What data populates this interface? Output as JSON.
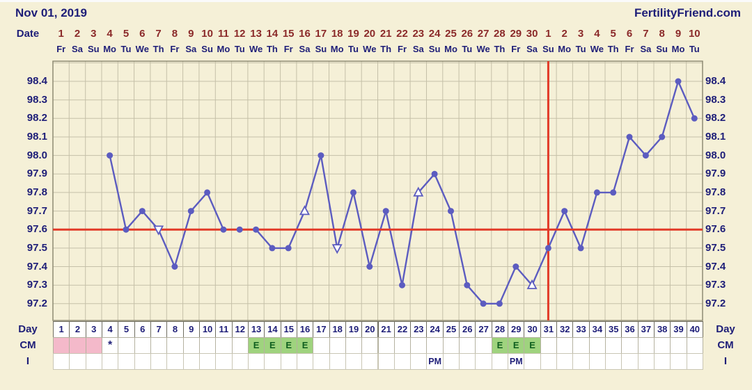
{
  "header": {
    "title": "Nov 01, 2019",
    "site": "FertilityFriend.com"
  },
  "axis": {
    "date_label": "Date",
    "dates": [
      1,
      2,
      3,
      4,
      5,
      6,
      7,
      8,
      9,
      10,
      11,
      12,
      13,
      14,
      15,
      16,
      17,
      18,
      19,
      20,
      21,
      22,
      23,
      24,
      25,
      26,
      27,
      28,
      29,
      30,
      1,
      2,
      3,
      4,
      5,
      6,
      7,
      8,
      9,
      10
    ],
    "weekdays": [
      "Fr",
      "Sa",
      "Su",
      "Mo",
      "Tu",
      "We",
      "Th",
      "Fr",
      "Sa",
      "Su",
      "Mo",
      "Tu",
      "We",
      "Th",
      "Fr",
      "Sa",
      "Su",
      "Mo",
      "Tu",
      "We",
      "Th",
      "Fr",
      "Sa",
      "Su",
      "Mo",
      "Tu",
      "We",
      "Th",
      "Fr",
      "Sa",
      "Su",
      "Mo",
      "Tu",
      "We",
      "Th",
      "Fr",
      "Sa",
      "Su",
      "Mo",
      "Tu"
    ],
    "temp_labels": [
      "98.4",
      "98.3",
      "98.2",
      "98.1",
      "98.0",
      "97.9",
      "97.8",
      "97.7",
      "97.6",
      "97.5",
      "97.4",
      "97.3",
      "97.2"
    ]
  },
  "rows": {
    "day_label": "Day",
    "cm_label": "CM",
    "i_label": "I",
    "day_numbers": [
      1,
      2,
      3,
      4,
      5,
      6,
      7,
      8,
      9,
      10,
      11,
      12,
      13,
      14,
      15,
      16,
      17,
      18,
      19,
      20,
      21,
      22,
      23,
      24,
      25,
      26,
      27,
      28,
      29,
      30,
      31,
      32,
      33,
      34,
      35,
      36,
      37,
      38,
      39,
      40
    ],
    "cm_pink_days": [
      1,
      2,
      3
    ],
    "cm_star_day": 4,
    "star_symbol": "*",
    "cm_egg_days": [
      13,
      14,
      15,
      16,
      28,
      29,
      30
    ],
    "egg_symbol": "E",
    "pm_days": [
      24,
      29
    ],
    "pm_symbol": "PM"
  },
  "chart_data": {
    "type": "line",
    "x": [
      1,
      2,
      3,
      4,
      5,
      6,
      7,
      8,
      9,
      10,
      11,
      12,
      13,
      14,
      15,
      16,
      17,
      18,
      19,
      20,
      21,
      22,
      23,
      24,
      25,
      26,
      27,
      28,
      29,
      30,
      31,
      32,
      33,
      34,
      35,
      36,
      37,
      38,
      39,
      40
    ],
    "temps": [
      null,
      null,
      null,
      98.0,
      97.6,
      97.7,
      97.6,
      97.4,
      97.7,
      97.8,
      97.6,
      97.6,
      97.6,
      97.5,
      97.5,
      97.7,
      98.0,
      97.5,
      97.8,
      97.4,
      97.7,
      97.3,
      97.8,
      97.9,
      97.7,
      97.3,
      97.2,
      97.2,
      97.4,
      97.3,
      97.5,
      97.7,
      97.5,
      97.8,
      97.8,
      98.1,
      98.0,
      98.1,
      98.4,
      98.2
    ],
    "y_ticks": [
      98.4,
      98.3,
      98.2,
      98.1,
      98.0,
      97.9,
      97.8,
      97.7,
      97.6,
      97.5,
      97.4,
      97.3,
      97.2
    ],
    "y_range": [
      97.1,
      98.5
    ],
    "coverline": 97.6,
    "ovulation_line_day": 31,
    "open_triangle_up_days": [
      16,
      23,
      30
    ],
    "open_triangle_down_days": [
      7,
      18
    ],
    "grid": true,
    "line_color": "#5c5cc0",
    "coverline_color": "#e23a28"
  },
  "colors": {
    "background": "#f5f0d7",
    "navy": "#1e1e78",
    "maroon": "#8b2a2a",
    "grid": "#c5c0a8",
    "plot_border": "#8e8b74",
    "purple": "#5c5cc0",
    "red": "#e23a28",
    "pink": "#f4b9ca",
    "green": "#9fd37e",
    "green_text": "#0f5f1f"
  }
}
